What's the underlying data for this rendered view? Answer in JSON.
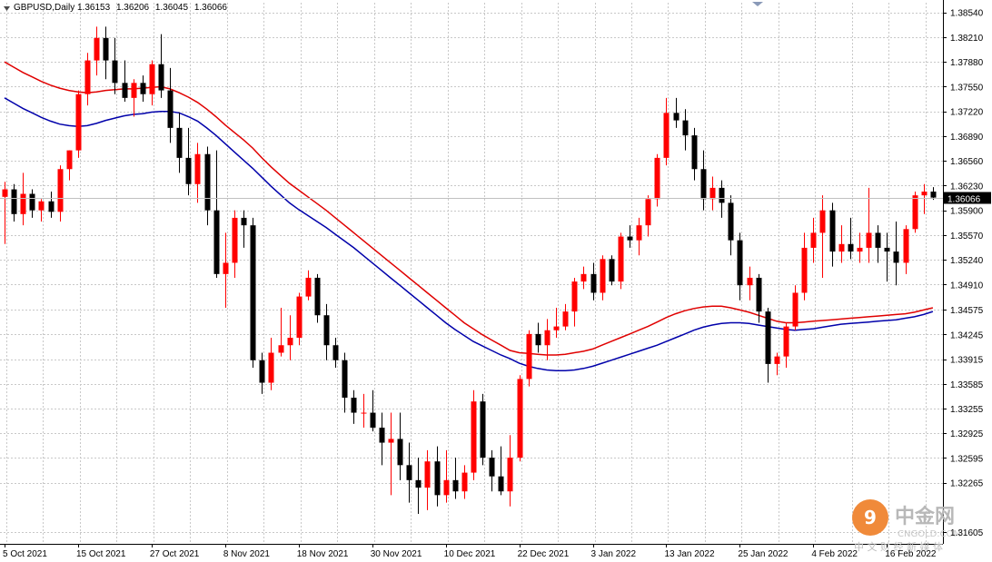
{
  "chart_data": {
    "type": "candlestick",
    "symbol": "GBPUSD",
    "timeframe": "Daily",
    "ohlc_header": [
      "1.36153",
      "1.36206",
      "1.36045",
      "1.36066"
    ],
    "current_price": "1.36066",
    "ylim": [
      1.3145,
      1.3867
    ],
    "y_ticks": [
      "1.38540",
      "1.38210",
      "1.37880",
      "1.37550",
      "1.37220",
      "1.36890",
      "1.36560",
      "1.36230",
      "1.35900",
      "1.35570",
      "1.35240",
      "1.34910",
      "1.34575",
      "1.34245",
      "1.33915",
      "1.33585",
      "1.33255",
      "1.32925",
      "1.32595",
      "1.32265",
      "1.31605"
    ],
    "x_ticks": [
      {
        "label": "5 Oct 2021",
        "i": 0
      },
      {
        "label": "15 Oct 2021",
        "i": 8
      },
      {
        "label": "27 Oct 2021",
        "i": 16
      },
      {
        "label": "8 Nov 2021",
        "i": 24
      },
      {
        "label": "18 Nov 2021",
        "i": 32
      },
      {
        "label": "30 Nov 2021",
        "i": 40
      },
      {
        "label": "10 Dec 2021",
        "i": 48
      },
      {
        "label": "22 Dec 2021",
        "i": 56
      },
      {
        "label": "3 Jan 2022",
        "i": 64
      },
      {
        "label": "13 Jan 2022",
        "i": 72
      },
      {
        "label": "25 Jan 2022",
        "i": 80
      },
      {
        "label": "4 Feb 2022",
        "i": 88
      },
      {
        "label": "16 Feb 2022",
        "i": 96
      }
    ],
    "colors": {
      "bull": "#ff0000",
      "bear": "#000000",
      "ma_red": "#e00000",
      "ma_blue": "#0000aa",
      "grid": "#c8c8c8",
      "price_line": "#c0c0c0",
      "price_label_bg": "#000000"
    },
    "candles": [
      [
        1.3608,
        1.3628,
        1.3545,
        1.3618
      ],
      [
        1.3618,
        1.3625,
        1.3575,
        1.3585
      ],
      [
        1.3585,
        1.364,
        1.357,
        1.3612
      ],
      [
        1.3612,
        1.3618,
        1.358,
        1.359
      ],
      [
        1.359,
        1.3605,
        1.3575,
        1.3602
      ],
      [
        1.3602,
        1.3615,
        1.358,
        1.3588
      ],
      [
        1.3588,
        1.365,
        1.3575,
        1.3645
      ],
      [
        1.3645,
        1.367,
        1.363,
        1.367
      ],
      [
        1.367,
        1.375,
        1.366,
        1.3745
      ],
      [
        1.3745,
        1.38,
        1.373,
        1.379
      ],
      [
        1.379,
        1.3835,
        1.377,
        1.382
      ],
      [
        1.382,
        1.3835,
        1.3765,
        1.379
      ],
      [
        1.379,
        1.382,
        1.3745,
        1.376
      ],
      [
        1.376,
        1.379,
        1.3735,
        1.374
      ],
      [
        1.374,
        1.3765,
        1.3715,
        1.376
      ],
      [
        1.376,
        1.377,
        1.3735,
        1.3745
      ],
      [
        1.3745,
        1.379,
        1.373,
        1.3785
      ],
      [
        1.3785,
        1.3825,
        1.374,
        1.375
      ],
      [
        1.375,
        1.378,
        1.368,
        1.37
      ],
      [
        1.37,
        1.372,
        1.364,
        1.366
      ],
      [
        1.366,
        1.37,
        1.361,
        1.3625
      ],
      [
        1.3625,
        1.368,
        1.36,
        1.3665
      ],
      [
        1.3665,
        1.3675,
        1.357,
        1.359
      ],
      [
        1.359,
        1.367,
        1.35,
        1.3505
      ],
      [
        1.3505,
        1.356,
        1.346,
        1.352
      ],
      [
        1.352,
        1.359,
        1.35,
        1.358
      ],
      [
        1.358,
        1.359,
        1.354,
        1.357
      ],
      [
        1.357,
        1.358,
        1.338,
        1.339
      ],
      [
        1.339,
        1.34,
        1.3345,
        1.336
      ],
      [
        1.336,
        1.342,
        1.335,
        1.34
      ],
      [
        1.34,
        1.346,
        1.3395,
        1.341
      ],
      [
        1.341,
        1.345,
        1.339,
        1.342
      ],
      [
        1.342,
        1.348,
        1.341,
        1.3475
      ],
      [
        1.3475,
        1.351,
        1.347,
        1.35
      ],
      [
        1.35,
        1.3505,
        1.344,
        1.345
      ],
      [
        1.345,
        1.3465,
        1.339,
        1.341
      ],
      [
        1.341,
        1.342,
        1.338,
        1.339
      ],
      [
        1.339,
        1.34,
        1.332,
        1.334
      ],
      [
        1.334,
        1.335,
        1.3305,
        1.332
      ],
      [
        1.332,
        1.3345,
        1.33,
        1.332
      ],
      [
        1.332,
        1.335,
        1.3295,
        1.33
      ],
      [
        1.33,
        1.332,
        1.325,
        1.328
      ],
      [
        1.328,
        1.332,
        1.321,
        1.3285
      ],
      [
        1.3285,
        1.332,
        1.323,
        1.325
      ],
      [
        1.325,
        1.328,
        1.32,
        1.323
      ],
      [
        1.323,
        1.326,
        1.3185,
        1.322
      ],
      [
        1.322,
        1.327,
        1.319,
        1.3255
      ],
      [
        1.3255,
        1.3275,
        1.3195,
        1.321
      ],
      [
        1.321,
        1.327,
        1.32,
        1.323
      ],
      [
        1.323,
        1.326,
        1.3205,
        1.3215
      ],
      [
        1.3215,
        1.325,
        1.3205,
        1.324
      ],
      [
        1.324,
        1.335,
        1.323,
        1.3335
      ],
      [
        1.3335,
        1.3345,
        1.325,
        1.326
      ],
      [
        1.326,
        1.327,
        1.3215,
        1.3235
      ],
      [
        1.3235,
        1.3275,
        1.321,
        1.3215
      ],
      [
        1.3215,
        1.329,
        1.3195,
        1.326
      ],
      [
        1.326,
        1.337,
        1.3255,
        1.3365
      ],
      [
        1.3365,
        1.343,
        1.3355,
        1.3425
      ],
      [
        1.3425,
        1.344,
        1.34,
        1.341
      ],
      [
        1.341,
        1.3445,
        1.339,
        1.343
      ],
      [
        1.343,
        1.346,
        1.342,
        1.3435
      ],
      [
        1.3435,
        1.3465,
        1.343,
        1.3455
      ],
      [
        1.3455,
        1.35,
        1.3435,
        1.3495
      ],
      [
        1.3495,
        1.3515,
        1.3485,
        1.3505
      ],
      [
        1.3505,
        1.352,
        1.347,
        1.348
      ],
      [
        1.348,
        1.353,
        1.347,
        1.3525
      ],
      [
        1.3525,
        1.353,
        1.349,
        1.3495
      ],
      [
        1.3495,
        1.356,
        1.3485,
        1.3555
      ],
      [
        1.3555,
        1.357,
        1.354,
        1.355
      ],
      [
        1.355,
        1.358,
        1.353,
        1.357
      ],
      [
        1.357,
        1.361,
        1.3555,
        1.3605
      ],
      [
        1.3605,
        1.3665,
        1.3595,
        1.366
      ],
      [
        1.366,
        1.374,
        1.365,
        1.372
      ],
      [
        1.372,
        1.374,
        1.37,
        1.371
      ],
      [
        1.371,
        1.3725,
        1.367,
        1.369
      ],
      [
        1.369,
        1.37,
        1.363,
        1.3645
      ],
      [
        1.3645,
        1.367,
        1.359,
        1.3605
      ],
      [
        1.3605,
        1.3635,
        1.359,
        1.362
      ],
      [
        1.362,
        1.363,
        1.358,
        1.36
      ],
      [
        1.36,
        1.361,
        1.353,
        1.355
      ],
      [
        1.355,
        1.356,
        1.347,
        1.349
      ],
      [
        1.349,
        1.3515,
        1.347,
        1.35
      ],
      [
        1.35,
        1.3505,
        1.344,
        1.3455
      ],
      [
        1.3455,
        1.346,
        1.336,
        1.3385
      ],
      [
        1.3385,
        1.34,
        1.337,
        1.3395
      ],
      [
        1.3395,
        1.344,
        1.338,
        1.3435
      ],
      [
        1.3435,
        1.349,
        1.343,
        1.348
      ],
      [
        1.348,
        1.356,
        1.347,
        1.354
      ],
      [
        1.354,
        1.358,
        1.352,
        1.356
      ],
      [
        1.356,
        1.361,
        1.35,
        1.359
      ],
      [
        1.359,
        1.36,
        1.3515,
        1.3535
      ],
      [
        1.3535,
        1.357,
        1.352,
        1.3545
      ],
      [
        1.3545,
        1.358,
        1.3525,
        1.3535
      ],
      [
        1.3535,
        1.356,
        1.352,
        1.354
      ],
      [
        1.354,
        1.362,
        1.352,
        1.356
      ],
      [
        1.356,
        1.357,
        1.352,
        1.354
      ],
      [
        1.354,
        1.356,
        1.3495,
        1.3535
      ],
      [
        1.3535,
        1.3575,
        1.349,
        1.352
      ],
      [
        1.352,
        1.357,
        1.3505,
        1.3565
      ],
      [
        1.3565,
        1.3615,
        1.356,
        1.361
      ],
      [
        1.361,
        1.3625,
        1.3585,
        1.3615
      ],
      [
        1.3615,
        1.3621,
        1.3604,
        1.3607
      ]
    ],
    "ma_red": [
      1.3788,
      1.3781,
      1.3774,
      1.3768,
      1.3762,
      1.3757,
      1.3753,
      1.375,
      1.3748,
      1.3747,
      1.3748,
      1.375,
      1.3751,
      1.3752,
      1.3752,
      1.3753,
      1.3754,
      1.3755,
      1.3752,
      1.3747,
      1.3741,
      1.3734,
      1.3725,
      1.3715,
      1.3704,
      1.3694,
      1.3684,
      1.3673,
      1.366,
      1.3648,
      1.3637,
      1.3626,
      1.3617,
      1.3608,
      1.3599,
      1.359,
      1.358,
      1.357,
      1.356,
      1.355,
      1.354,
      1.353,
      1.352,
      1.351,
      1.35,
      1.349,
      1.348,
      1.347,
      1.346,
      1.345,
      1.344,
      1.3432,
      1.3424,
      1.3417,
      1.341,
      1.3403,
      1.34,
      1.3399,
      1.3398,
      1.3397,
      1.3397,
      1.3398,
      1.34,
      1.3402,
      1.3405,
      1.341,
      1.3415,
      1.342,
      1.3425,
      1.343,
      1.3435,
      1.3441,
      1.3447,
      1.3452,
      1.3456,
      1.3459,
      1.3461,
      1.3462,
      1.3462,
      1.346,
      1.3457,
      1.3454,
      1.345,
      1.3446,
      1.3442,
      1.344,
      1.344,
      1.3441,
      1.3442,
      1.3443,
      1.3444,
      1.3445,
      1.3446,
      1.3447,
      1.3448,
      1.3449,
      1.345,
      1.3451,
      1.3452,
      1.3454,
      1.3457,
      1.346
    ],
    "ma_blue": [
      1.374,
      1.3733,
      1.3726,
      1.372,
      1.3714,
      1.3709,
      1.3705,
      1.3703,
      1.3702,
      1.3703,
      1.3706,
      1.371,
      1.3713,
      1.3716,
      1.3718,
      1.3719,
      1.3721,
      1.3722,
      1.3722,
      1.372,
      1.3715,
      1.3709,
      1.37,
      1.369,
      1.3679,
      1.3668,
      1.3657,
      1.3646,
      1.3634,
      1.3622,
      1.3611,
      1.36,
      1.3591,
      1.3583,
      1.3575,
      1.3567,
      1.3558,
      1.3549,
      1.354,
      1.353,
      1.352,
      1.351,
      1.35,
      1.349,
      1.348,
      1.347,
      1.346,
      1.345,
      1.344,
      1.3431,
      1.3423,
      1.3415,
      1.3409,
      1.3403,
      1.3397,
      1.3392,
      1.3386,
      1.3382,
      1.3379,
      1.3377,
      1.3376,
      1.3376,
      1.3377,
      1.3379,
      1.3382,
      1.3386,
      1.339,
      1.3394,
      1.3398,
      1.3402,
      1.3406,
      1.341,
      1.3415,
      1.342,
      1.3425,
      1.343,
      1.3434,
      1.3437,
      1.3439,
      1.344,
      1.344,
      1.3439,
      1.3437,
      1.3435,
      1.3433,
      1.3431,
      1.343,
      1.3431,
      1.3432,
      1.3434,
      1.3436,
      1.3438,
      1.3439,
      1.344,
      1.3441,
      1.3442,
      1.3443,
      1.3444,
      1.3446,
      1.3448,
      1.3451,
      1.3455
    ]
  },
  "watermark": {
    "cn": "中金网",
    "en": "CNGOLD.COM",
    "sub": "中 文 财 经 新 媒 体"
  }
}
